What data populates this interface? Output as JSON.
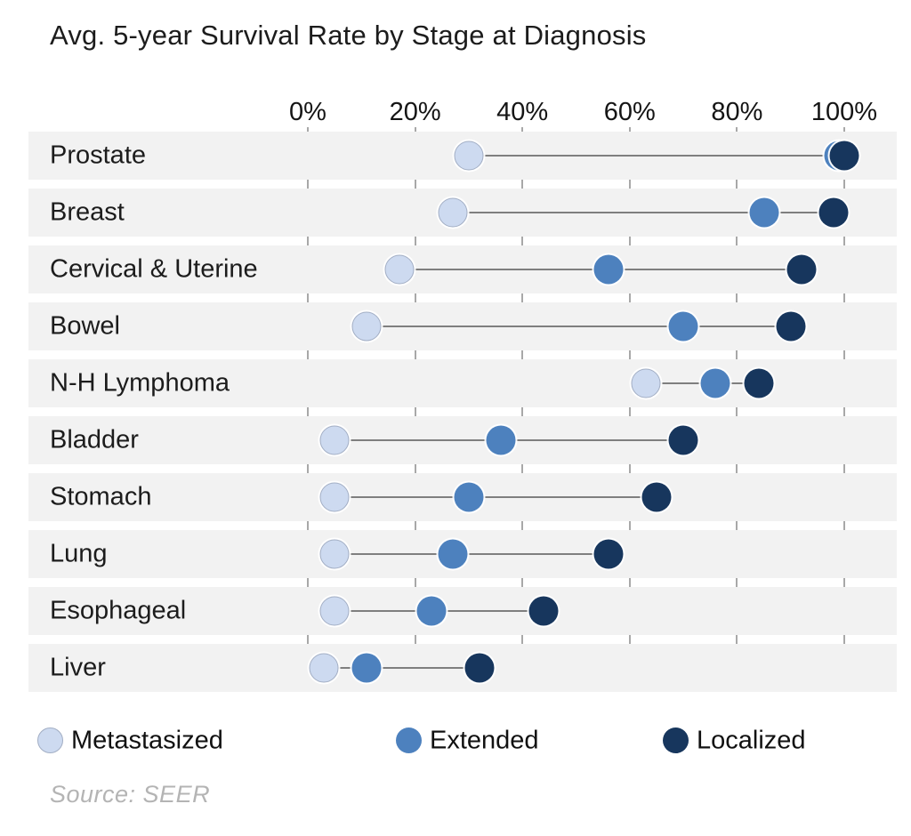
{
  "title": "Avg. 5-year Survival Rate by Stage at Diagnosis",
  "source": "Source: SEER",
  "colors": {
    "metastasized": "#cddaf0",
    "metastasized_border": "#a2aec4",
    "extended": "#4d81be",
    "localized": "#17365d",
    "gridline": "#a8a8a8",
    "connector": "#7f7f7f",
    "row_band": "#f2f2f2"
  },
  "chart_data": {
    "type": "scatter",
    "subtype": "dumbbell-dot-plot",
    "title": "Avg. 5-year Survival Rate by Stage at Diagnosis",
    "xlabel": "",
    "ylabel": "",
    "xlim": [
      0,
      100
    ],
    "x_tick_values": [
      0,
      20,
      40,
      60,
      80,
      100
    ],
    "x_tick_labels": [
      "0%",
      "20%",
      "40%",
      "60%",
      "80%",
      "100%"
    ],
    "grid": "vertical",
    "legend_position": "bottom",
    "categories": [
      "Prostate",
      "Breast",
      "Cervical & Uterine",
      "Bowel",
      "N-H Lymphoma",
      "Bladder",
      "Stomach",
      "Lung",
      "Esophageal",
      "Liver"
    ],
    "series": [
      {
        "name": "Metastasized",
        "color": "#cddaf0",
        "values": [
          30,
          27,
          17,
          11,
          63,
          5,
          5,
          5,
          5,
          3
        ]
      },
      {
        "name": "Extended",
        "color": "#4d81be",
        "values": [
          99,
          85,
          56,
          70,
          76,
          36,
          30,
          27,
          23,
          11
        ]
      },
      {
        "name": "Localized",
        "color": "#17365d",
        "values": [
          100,
          98,
          92,
          90,
          84,
          70,
          65,
          56,
          44,
          32
        ]
      }
    ]
  }
}
